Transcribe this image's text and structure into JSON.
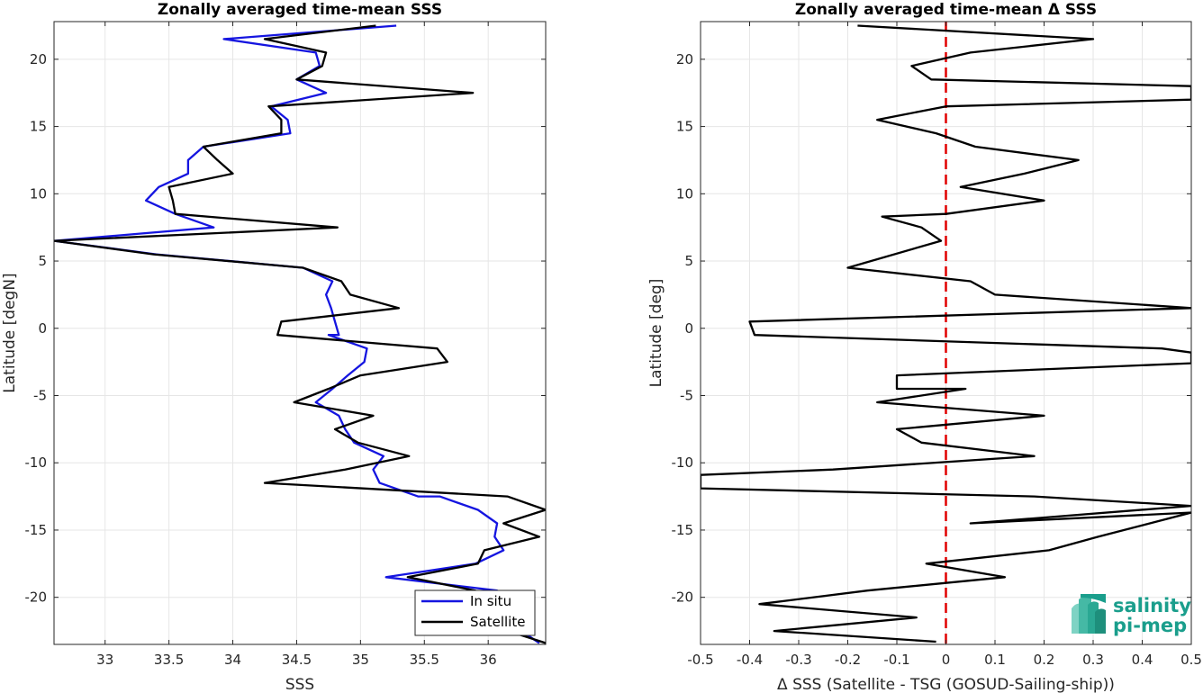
{
  "chart_data": [
    {
      "type": "line",
      "title": "Zonally averaged time-mean SSS",
      "xlabel": "SSS",
      "ylabel": "Latitude [degN]",
      "xlim": [
        32.6,
        36.45
      ],
      "ylim": [
        -23.5,
        22.8
      ],
      "xticks": [
        33,
        33.5,
        34,
        34.5,
        35,
        35.5,
        36
      ],
      "xticklabels": [
        "33",
        "33.5",
        "34",
        "34.5",
        "35",
        "35.5",
        "36"
      ],
      "yticks": [
        -20,
        -15,
        -10,
        -5,
        0,
        5,
        10,
        15,
        20
      ],
      "yticklabels": [
        "-20",
        "-15",
        "-10",
        "-5",
        "0",
        "5",
        "10",
        "15",
        "20"
      ],
      "grid": true,
      "legend_position": "bottom-right",
      "series": [
        {
          "name": "In situ",
          "color": "#1515e0",
          "points": [
            [
              35.28,
              22.5
            ],
            [
              33.93,
              21.5
            ],
            [
              34.65,
              20.5
            ],
            [
              34.68,
              19.5
            ],
            [
              34.5,
              18.5
            ],
            [
              34.73,
              17.5
            ],
            [
              34.3,
              16.5
            ],
            [
              34.43,
              15.5
            ],
            [
              34.45,
              14.5
            ],
            [
              33.77,
              13.5
            ],
            [
              33.65,
              12.5
            ],
            [
              33.65,
              11.5
            ],
            [
              33.42,
              10.5
            ],
            [
              33.32,
              9.5
            ],
            [
              33.55,
              8.5
            ],
            [
              33.85,
              7.5
            ],
            [
              32.6,
              6.5
            ],
            [
              33.4,
              5.5
            ],
            [
              34.55,
              4.5
            ],
            [
              34.78,
              3.5
            ],
            [
              34.73,
              2.5
            ],
            [
              34.77,
              1.5
            ],
            [
              34.8,
              0.5
            ],
            [
              34.83,
              -0.5
            ],
            [
              34.75,
              -0.5
            ],
            [
              35.05,
              -1.5
            ],
            [
              35.03,
              -2.5
            ],
            [
              34.9,
              -3.5
            ],
            [
              34.78,
              -4.5
            ],
            [
              34.65,
              -5.5
            ],
            [
              34.83,
              -6.5
            ],
            [
              34.88,
              -7.5
            ],
            [
              34.95,
              -8.5
            ],
            [
              35.18,
              -9.5
            ],
            [
              35.1,
              -10.5
            ],
            [
              35.15,
              -11.5
            ],
            [
              35.45,
              -12.5
            ],
            [
              35.62,
              -12.5
            ],
            [
              35.92,
              -13.5
            ],
            [
              36.07,
              -14.5
            ],
            [
              36.05,
              -15.5
            ],
            [
              36.12,
              -16.5
            ],
            [
              35.9,
              -17.5
            ],
            [
              35.2,
              -18.5
            ],
            [
              36.07,
              -19.5
            ],
            [
              35.95,
              -20.5
            ],
            [
              36.4,
              -23.4
            ]
          ]
        },
        {
          "name": "Satellite",
          "color": "#000000",
          "points": [
            [
              35.12,
              22.5
            ],
            [
              34.25,
              21.5
            ],
            [
              34.73,
              20.5
            ],
            [
              34.7,
              19.5
            ],
            [
              34.5,
              18.5
            ],
            [
              35.88,
              17.5
            ],
            [
              34.28,
              16.5
            ],
            [
              34.38,
              15.5
            ],
            [
              34.38,
              14.5
            ],
            [
              33.77,
              13.5
            ],
            [
              33.88,
              12.5
            ],
            [
              34.0,
              11.5
            ],
            [
              33.5,
              10.5
            ],
            [
              33.53,
              9.5
            ],
            [
              33.55,
              8.5
            ],
            [
              34.82,
              7.5
            ],
            [
              32.6,
              6.5
            ],
            [
              33.38,
              5.5
            ],
            [
              34.55,
              4.5
            ],
            [
              34.85,
              3.5
            ],
            [
              34.92,
              2.5
            ],
            [
              35.3,
              1.5
            ],
            [
              34.38,
              0.5
            ],
            [
              34.35,
              -0.5
            ],
            [
              35.6,
              -1.5
            ],
            [
              35.68,
              -2.5
            ],
            [
              35.0,
              -3.5
            ],
            [
              34.75,
              -4.5
            ],
            [
              34.48,
              -5.5
            ],
            [
              35.1,
              -6.5
            ],
            [
              34.8,
              -7.5
            ],
            [
              34.98,
              -8.5
            ],
            [
              35.38,
              -9.5
            ],
            [
              34.88,
              -10.5
            ],
            [
              34.25,
              -11.5
            ],
            [
              36.15,
              -12.5
            ],
            [
              36.45,
              -13.5
            ],
            [
              36.12,
              -14.5
            ],
            [
              36.4,
              -15.5
            ],
            [
              35.97,
              -16.5
            ],
            [
              35.92,
              -17.5
            ],
            [
              35.37,
              -18.5
            ],
            [
              35.9,
              -19.5
            ],
            [
              35.5,
              -20.5
            ],
            [
              36.45,
              -23.4
            ]
          ]
        }
      ]
    },
    {
      "type": "line",
      "title": "Zonally averaged time-mean Δ SSS",
      "xlabel": "Δ SSS (Satellite - TSG (GOSUD-Sailing-ship))",
      "ylabel": "Latitude [deg]",
      "xlim": [
        -0.5,
        0.5
      ],
      "ylim": [
        -23.5,
        22.8
      ],
      "xticks": [
        -0.5,
        -0.4,
        -0.3,
        -0.2,
        -0.1,
        0,
        0.1,
        0.2,
        0.3,
        0.4,
        0.5
      ],
      "xticklabels": [
        "-0.5",
        "-0.4",
        "-0.3",
        "-0.2",
        "-0.1",
        "0",
        "0.1",
        "0.2",
        "0.3",
        "0.4",
        "0.5"
      ],
      "yticks": [
        -20,
        -15,
        -10,
        -5,
        0,
        5,
        10,
        15,
        20
      ],
      "yticklabels": [
        "-20",
        "-15",
        "-10",
        "-5",
        "0",
        "5",
        "10",
        "15",
        "20"
      ],
      "grid": true,
      "reference_line": {
        "x": 0,
        "color": "#e00000",
        "style": "dashed"
      },
      "series": [
        {
          "color": "#000000",
          "points": [
            [
              -0.18,
              22.5
            ],
            [
              0.3,
              21.5
            ],
            [
              0.05,
              20.5
            ],
            [
              -0.07,
              19.5
            ],
            [
              -0.03,
              18.5
            ],
            [
              0.5,
              18.0
            ],
            [
              0.5,
              17.0
            ],
            [
              0.0,
              16.5
            ],
            [
              -0.14,
              15.5
            ],
            [
              -0.02,
              14.5
            ],
            [
              0.06,
              13.5
            ],
            [
              0.27,
              12.5
            ],
            [
              0.16,
              11.5
            ],
            [
              0.03,
              10.5
            ],
            [
              0.2,
              9.5
            ],
            [
              0.0,
              8.5
            ],
            [
              -0.13,
              8.3
            ],
            [
              -0.05,
              7.5
            ],
            [
              -0.01,
              6.5
            ],
            [
              -0.2,
              4.5
            ],
            [
              0.05,
              3.5
            ],
            [
              0.1,
              2.5
            ],
            [
              0.5,
              1.5
            ],
            [
              -0.4,
              0.5
            ],
            [
              -0.39,
              -0.5
            ],
            [
              0.44,
              -1.5
            ],
            [
              0.5,
              -1.8
            ],
            [
              0.5,
              -2.6
            ],
            [
              -0.1,
              -3.5
            ],
            [
              -0.1,
              -4.5
            ],
            [
              0.04,
              -4.5
            ],
            [
              -0.14,
              -5.5
            ],
            [
              0.2,
              -6.5
            ],
            [
              -0.1,
              -7.5
            ],
            [
              -0.05,
              -8.5
            ],
            [
              0.18,
              -9.5
            ],
            [
              -0.23,
              -10.5
            ],
            [
              -0.5,
              -10.9
            ],
            [
              -0.5,
              -11.9
            ],
            [
              0.18,
              -12.5
            ],
            [
              0.5,
              -13.2
            ],
            [
              0.05,
              -14.5
            ],
            [
              0.5,
              -13.7
            ],
            [
              0.31,
              -15.5
            ],
            [
              0.21,
              -16.5
            ],
            [
              -0.04,
              -17.5
            ],
            [
              0.12,
              -18.5
            ],
            [
              -0.16,
              -19.5
            ],
            [
              -0.38,
              -20.5
            ],
            [
              -0.06,
              -21.5
            ],
            [
              -0.35,
              -22.5
            ],
            [
              -0.02,
              -23.3
            ]
          ]
        }
      ]
    }
  ],
  "legend": {
    "items": [
      {
        "label": "In situ",
        "color": "#1515e0"
      },
      {
        "label": "Satellite",
        "color": "#000000"
      }
    ]
  },
  "logo": {
    "line1": "salinity",
    "line2": "pi-mep"
  }
}
